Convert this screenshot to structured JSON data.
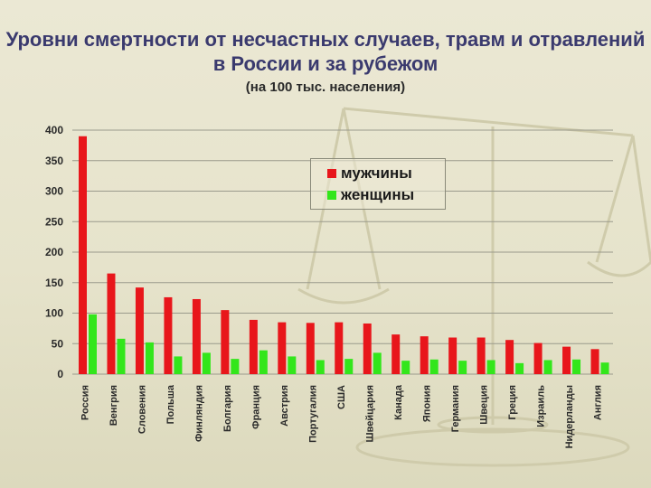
{
  "title": "Уровни смертности от несчастных случаев, травм и отравлений в России и за рубежом",
  "subtitle": "(на 100 тыс. населения)",
  "colors": {
    "men": "#e8161b",
    "women": "#33e61b",
    "title": "#3a3a6e"
  },
  "legend": {
    "men_label": "мужчины",
    "women_label": "женщины",
    "placement": "top-right"
  },
  "chart_data": {
    "type": "bar",
    "title": "Уровни смертности от несчастных случаев, травм и отравлений в России и за рубежом",
    "subtitle": "(на 100 тыс. населения)",
    "xlabel": "",
    "ylabel": "",
    "ylim": [
      0,
      400
    ],
    "yticks": [
      0,
      50,
      100,
      150,
      200,
      250,
      300,
      350,
      400
    ],
    "grid": true,
    "categories": [
      "Россия",
      "Венгрия",
      "Словения",
      "Польша",
      "Финляндия",
      "Болгария",
      "Франция",
      "Австрия",
      "Португалия",
      "США",
      "Швейцария",
      "Канада",
      "Япония",
      "Германия",
      "Швеция",
      "Греция",
      "Израиль",
      "Нидерланды",
      "Англия"
    ],
    "series": [
      {
        "name": "мужчины",
        "color": "#e8161b",
        "values": [
          390,
          165,
          142,
          126,
          123,
          105,
          89,
          85,
          84,
          85,
          83,
          65,
          62,
          60,
          60,
          56,
          51,
          45,
          41
        ]
      },
      {
        "name": "женщины",
        "color": "#33e61b",
        "values": [
          98,
          58,
          52,
          29,
          35,
          25,
          39,
          29,
          23,
          25,
          35,
          22,
          24,
          22,
          23,
          18,
          23,
          24,
          19
        ]
      }
    ]
  }
}
